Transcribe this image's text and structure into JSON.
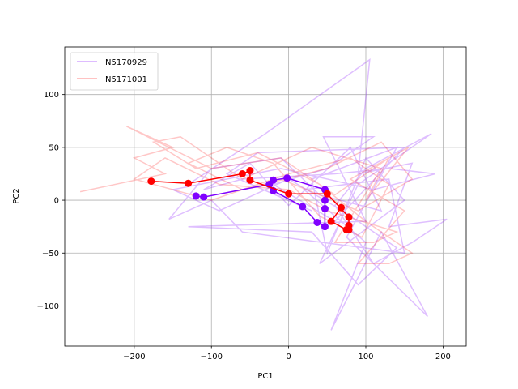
{
  "chart_data": {
    "type": "line",
    "title": "",
    "xlabel": "PC1",
    "ylabel": "PC2",
    "xlim": [
      -290,
      230
    ],
    "ylim": [
      -138,
      145
    ],
    "xticks": [
      -200,
      -100,
      0,
      100,
      200
    ],
    "yticks": [
      -100,
      -50,
      0,
      50,
      100
    ],
    "xtick_labels": [
      "−200",
      "−100",
      "0",
      "100",
      "200"
    ],
    "ytick_labels": [
      "−100",
      "−50",
      "0",
      "50",
      "100"
    ],
    "grid": true,
    "legend_position": "top-left",
    "series": [
      {
        "name": "N5170929",
        "color": "#8000ff",
        "trace_alpha": 0.25,
        "trace": [
          [
            -130,
            15
          ],
          [
            -30,
            63
          ],
          [
            105,
            133
          ],
          [
            90,
            25
          ],
          [
            160,
            35
          ],
          [
            130,
            -25
          ],
          [
            205,
            -18
          ],
          [
            160,
            -40
          ],
          [
            110,
            -60
          ],
          [
            60,
            -5
          ],
          [
            100,
            30
          ],
          [
            185,
            63
          ],
          [
            90,
            15
          ],
          [
            40,
            -60
          ],
          [
            150,
            0
          ],
          [
            100,
            40
          ],
          [
            50,
            -50
          ],
          [
            30,
            20
          ],
          [
            140,
            50
          ],
          [
            75,
            -35
          ],
          [
            180,
            -110
          ],
          [
            120,
            -30
          ],
          [
            55,
            -123
          ],
          [
            100,
            -40
          ],
          [
            20,
            10
          ],
          [
            130,
            20
          ],
          [
            150,
            -50
          ],
          [
            -60,
            -30
          ],
          [
            -100,
            0
          ],
          [
            -155,
            -18
          ],
          [
            -100,
            30
          ],
          [
            -10,
            40
          ],
          [
            40,
            5
          ],
          [
            120,
            -10
          ],
          [
            80,
            50
          ],
          [
            0,
            -5
          ],
          [
            -50,
            35
          ],
          [
            -110,
            10
          ],
          [
            -60,
            20
          ],
          [
            60,
            25
          ],
          [
            130,
            30
          ],
          [
            190,
            25
          ],
          [
            110,
            10
          ],
          [
            -10,
            30
          ],
          [
            -150,
            10
          ],
          [
            -90,
            -10
          ],
          [
            0,
            20
          ],
          [
            70,
            -10
          ],
          [
            140,
            -45
          ],
          [
            90,
            -80
          ],
          [
            30,
            -30
          ],
          [
            -130,
            -25
          ],
          [
            100,
            -20
          ],
          [
            45,
            60
          ],
          [
            110,
            60
          ],
          [
            50,
            30
          ],
          [
            -20,
            15
          ],
          [
            60,
            -20
          ],
          [
            150,
            50
          ],
          [
            -40,
            45
          ],
          [
            -80,
            25
          ],
          [
            30,
            -10
          ]
        ],
        "path": [
          [
            -120,
            4
          ],
          [
            -110,
            3
          ],
          [
            -25,
            15
          ],
          [
            -20,
            19
          ],
          [
            -2,
            21
          ],
          [
            47,
            10
          ],
          [
            47,
            0
          ],
          [
            47,
            -8
          ],
          [
            47,
            -25
          ],
          [
            37,
            -21
          ],
          [
            18,
            -6
          ],
          [
            -20,
            9
          ]
        ]
      },
      {
        "name": "N5171001",
        "color": "#ff0000",
        "trace_alpha": 0.22,
        "trace": [
          [
            -270,
            8
          ],
          [
            -160,
            25
          ],
          [
            -200,
            40
          ],
          [
            -150,
            50
          ],
          [
            -210,
            70
          ],
          [
            -100,
            30
          ],
          [
            -10,
            40
          ],
          [
            60,
            5
          ],
          [
            130,
            40
          ],
          [
            100,
            0
          ],
          [
            155,
            50
          ],
          [
            80,
            20
          ],
          [
            150,
            -10
          ],
          [
            90,
            -60
          ],
          [
            130,
            -60
          ],
          [
            160,
            -50
          ],
          [
            100,
            -20
          ],
          [
            40,
            15
          ],
          [
            -40,
            45
          ],
          [
            -120,
            30
          ],
          [
            -175,
            55
          ],
          [
            -140,
            60
          ],
          [
            -60,
            20
          ],
          [
            30,
            50
          ],
          [
            120,
            30
          ],
          [
            60,
            -40
          ],
          [
            110,
            -40
          ],
          [
            140,
            -30
          ],
          [
            50,
            -10
          ],
          [
            0,
            10
          ],
          [
            -90,
            15
          ],
          [
            -160,
            40
          ],
          [
            -200,
            20
          ],
          [
            -100,
            0
          ],
          [
            0,
            25
          ],
          [
            80,
            40
          ],
          [
            130,
            15
          ],
          [
            95,
            -35
          ],
          [
            40,
            -15
          ],
          [
            -20,
            35
          ],
          [
            -80,
            50
          ],
          [
            -130,
            35
          ],
          [
            -60,
            10
          ],
          [
            50,
            30
          ],
          [
            120,
            55
          ],
          [
            160,
            20
          ],
          [
            90,
            -10
          ],
          [
            -10,
            20
          ]
        ],
        "path": [
          [
            -178,
            18
          ],
          [
            -130,
            16
          ],
          [
            -60,
            25
          ],
          [
            -50,
            28
          ],
          [
            -50,
            19
          ],
          [
            0,
            6
          ],
          [
            50,
            6
          ],
          [
            78,
            -16
          ],
          [
            78,
            -24
          ],
          [
            78,
            -28
          ],
          [
            75,
            -28
          ],
          [
            55,
            -20
          ],
          [
            68,
            -7
          ]
        ]
      }
    ]
  }
}
